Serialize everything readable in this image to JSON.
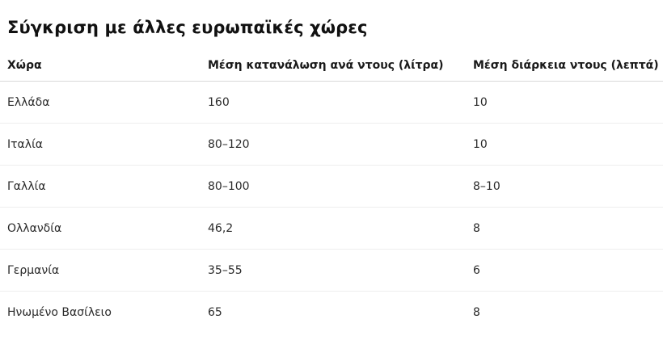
{
  "title": "Σύγκριση με άλλες ευρωπαϊκές χώρες",
  "table": {
    "headers": [
      "Χώρα",
      "Μέση κατανάλωση ανά ντους (λίτρα)",
      "Μέση διάρκεια ντους (λεπτά)"
    ],
    "rows": [
      [
        "Ελλάδα",
        "160",
        "10"
      ],
      [
        "Ιταλία",
        "80–120",
        "10"
      ],
      [
        "Γαλλία",
        "80–100",
        "8–10"
      ],
      [
        "Ολλανδία",
        "46,2",
        "8"
      ],
      [
        "Γερμανία",
        "35–55",
        "6"
      ],
      [
        "Ηνωμένο Βασίλειο",
        "65",
        "8"
      ]
    ]
  }
}
